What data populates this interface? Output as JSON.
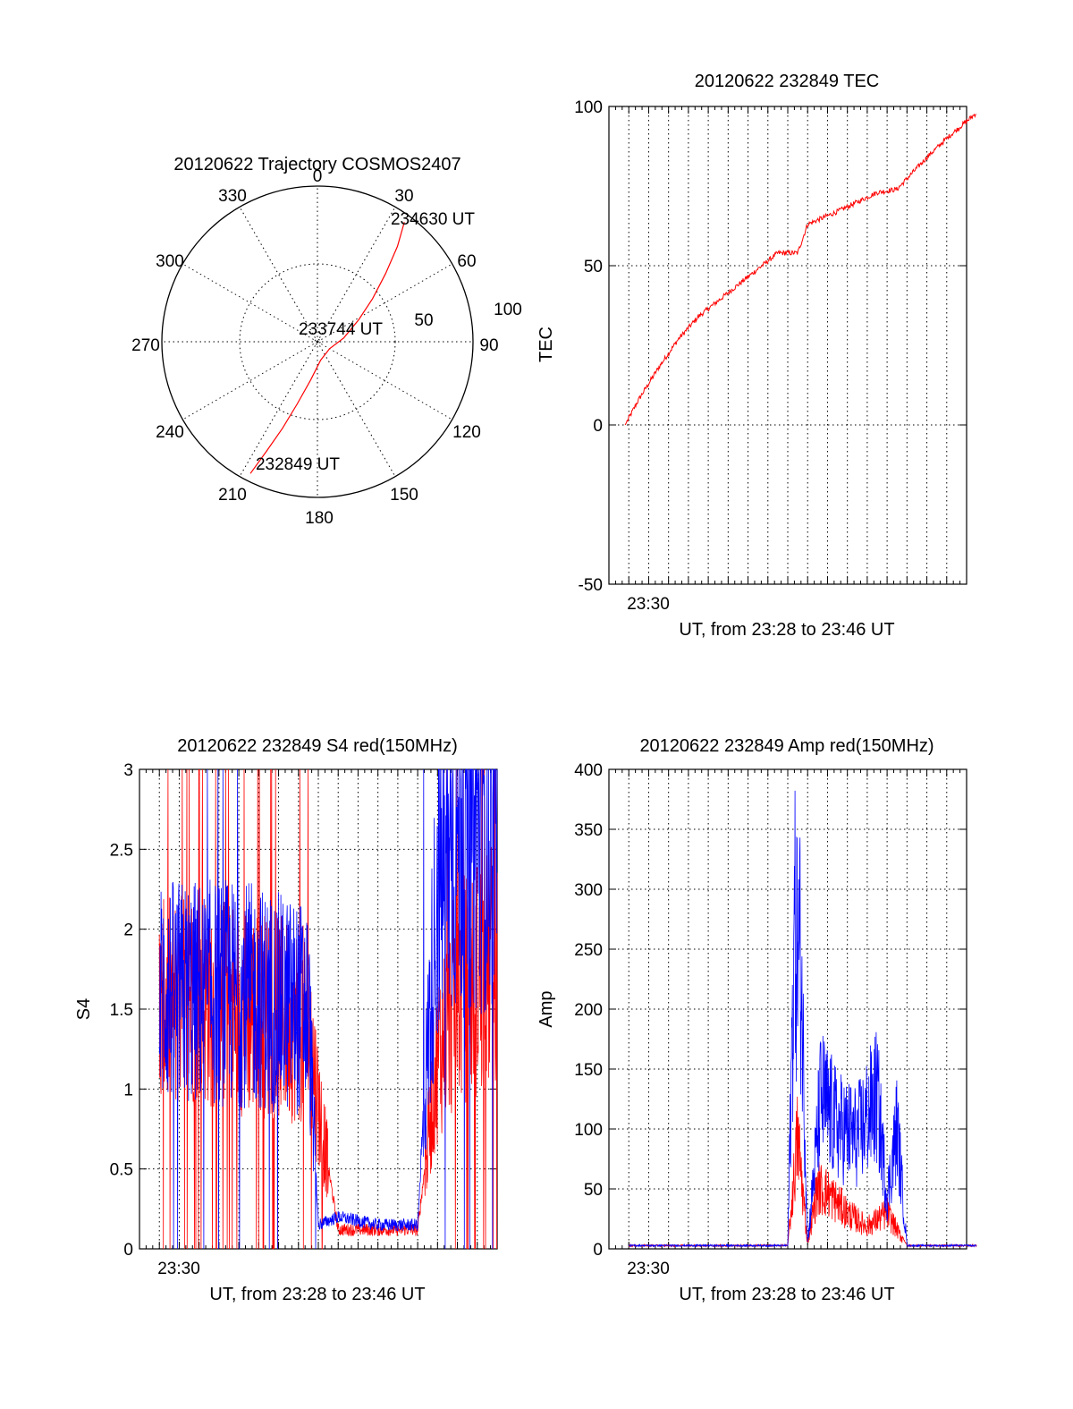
{
  "colors": {
    "red": "#ff0000",
    "blue": "#0000ff",
    "axis": "#000000"
  },
  "chart_data": [
    {
      "type": "polar",
      "title": "20120622 Trajectory COSMOS2407",
      "angle_labels": [
        "0",
        "30",
        "60",
        "90",
        "120",
        "150",
        "180",
        "210",
        "240",
        "270",
        "300",
        "330"
      ],
      "radial_labels": [
        "50",
        "100"
      ],
      "rlim": [
        0,
        100
      ],
      "point_labels": [
        {
          "text": "234630 UT",
          "azimuth": 36,
          "zenith_angle": 95
        },
        {
          "text": "233744 UT",
          "azimuth": 0,
          "zenith_angle": 0
        },
        {
          "text": "232849 UT",
          "azimuth": 207,
          "zenith_angle": 95
        }
      ],
      "series": [
        {
          "color": "#ff0000",
          "points": [
            [
              36,
              95
            ],
            [
              40,
              80
            ],
            [
              45,
              62
            ],
            [
              52,
              45
            ],
            [
              62,
              30
            ],
            [
              82,
              17
            ],
            [
              120,
              9
            ],
            [
              170,
              12
            ],
            [
              190,
              25
            ],
            [
              198,
              42
            ],
            [
              202,
              60
            ],
            [
              205,
              78
            ],
            [
              207,
              95
            ]
          ]
        }
      ]
    },
    {
      "type": "line",
      "title": "20120622 232849 TEC",
      "xlabel": "UT, from 23:28 to 23:46 UT",
      "ylabel": "TEC",
      "x_tick_label": "23:30",
      "xlim": [
        "23:28",
        "23:46"
      ],
      "ylim": [
        -50,
        100
      ],
      "yticks": [
        "-50",
        "0",
        "50",
        "100"
      ],
      "grid": true,
      "series": [
        {
          "color": "#ff0000",
          "x": [
            "23:28:49",
            "23:29:30",
            "23:30:30",
            "23:31:30",
            "23:32:30",
            "23:33:30",
            "23:34:30",
            "23:35:30",
            "23:36:30",
            "23:37:30",
            "23:38:00",
            "23:39:30",
            "23:41:30",
            "23:42:30",
            "23:44:00",
            "23:45:00",
            "23:46:30"
          ],
          "y": [
            0,
            8,
            18,
            27,
            34,
            39,
            44,
            49,
            54,
            54,
            63,
            67,
            73,
            74,
            84,
            90,
            98
          ]
        }
      ]
    },
    {
      "type": "line",
      "title": "20120622 232849 S4 red(150MHz)",
      "xlabel": "UT, from 23:28 to 23:46 UT",
      "ylabel": "S4",
      "x_tick_label": "23:30",
      "xlim": [
        "23:28",
        "23:46"
      ],
      "ylim": [
        0,
        3
      ],
      "yticks": [
        "0",
        "0.5",
        "1",
        "1.5",
        "2",
        "2.5",
        "3"
      ],
      "grid": true,
      "series": [
        {
          "color": "#ff0000",
          "x": [
            "23:29:00",
            "23:31:00",
            "23:33:00",
            "23:36:30",
            "23:37:00",
            "23:38:00",
            "23:40:00",
            "23:42:00",
            "23:43:00",
            "23:44:00",
            "23:46:00"
          ],
          "y": [
            1.5,
            1.6,
            1.5,
            1.4,
            0.9,
            0.12,
            0.12,
            0.12,
            1.2,
            1.6,
            1.8
          ]
        },
        {
          "color": "#0000ff",
          "x": [
            "23:29:00",
            "23:31:00",
            "23:33:00",
            "23:36:30",
            "23:37:00",
            "23:38:00",
            "23:40:00",
            "23:42:00",
            "23:43:00",
            "23:44:00",
            "23:46:00"
          ],
          "y": [
            1.6,
            1.6,
            1.6,
            1.5,
            0.15,
            0.2,
            0.15,
            0.15,
            2.3,
            2.6,
            2.7
          ]
        }
      ]
    },
    {
      "type": "line",
      "title": "20120622 232849 Amp red(150MHz)",
      "xlabel": "UT, from 23:28 to 23:46 UT",
      "ylabel": "Amp",
      "x_tick_label": "23:30",
      "xlim": [
        "23:28",
        "23:46"
      ],
      "ylim": [
        0,
        400
      ],
      "yticks": [
        "0",
        "50",
        "100",
        "150",
        "200",
        "250",
        "300",
        "350",
        "400"
      ],
      "grid": true,
      "series": [
        {
          "color": "#ff0000",
          "x": [
            "23:29:00",
            "23:37:00",
            "23:37:30",
            "23:38:00",
            "23:38:30",
            "23:39:00",
            "23:40:00",
            "23:41:00",
            "23:42:00",
            "23:43:00",
            "23:46:30"
          ],
          "y": [
            2,
            2,
            110,
            5,
            60,
            55,
            35,
            22,
            35,
            2,
            2
          ]
        },
        {
          "color": "#0000ff",
          "x": [
            "23:29:00",
            "23:37:00",
            "23:37:20",
            "23:37:40",
            "23:38:00",
            "23:38:40",
            "23:39:30",
            "23:40:30",
            "23:41:30",
            "23:42:00",
            "23:42:30",
            "23:43:00",
            "23:46:30"
          ],
          "y": [
            2,
            2,
            310,
            280,
            5,
            150,
            120,
            110,
            150,
            50,
            120,
            2,
            2
          ]
        }
      ]
    }
  ]
}
